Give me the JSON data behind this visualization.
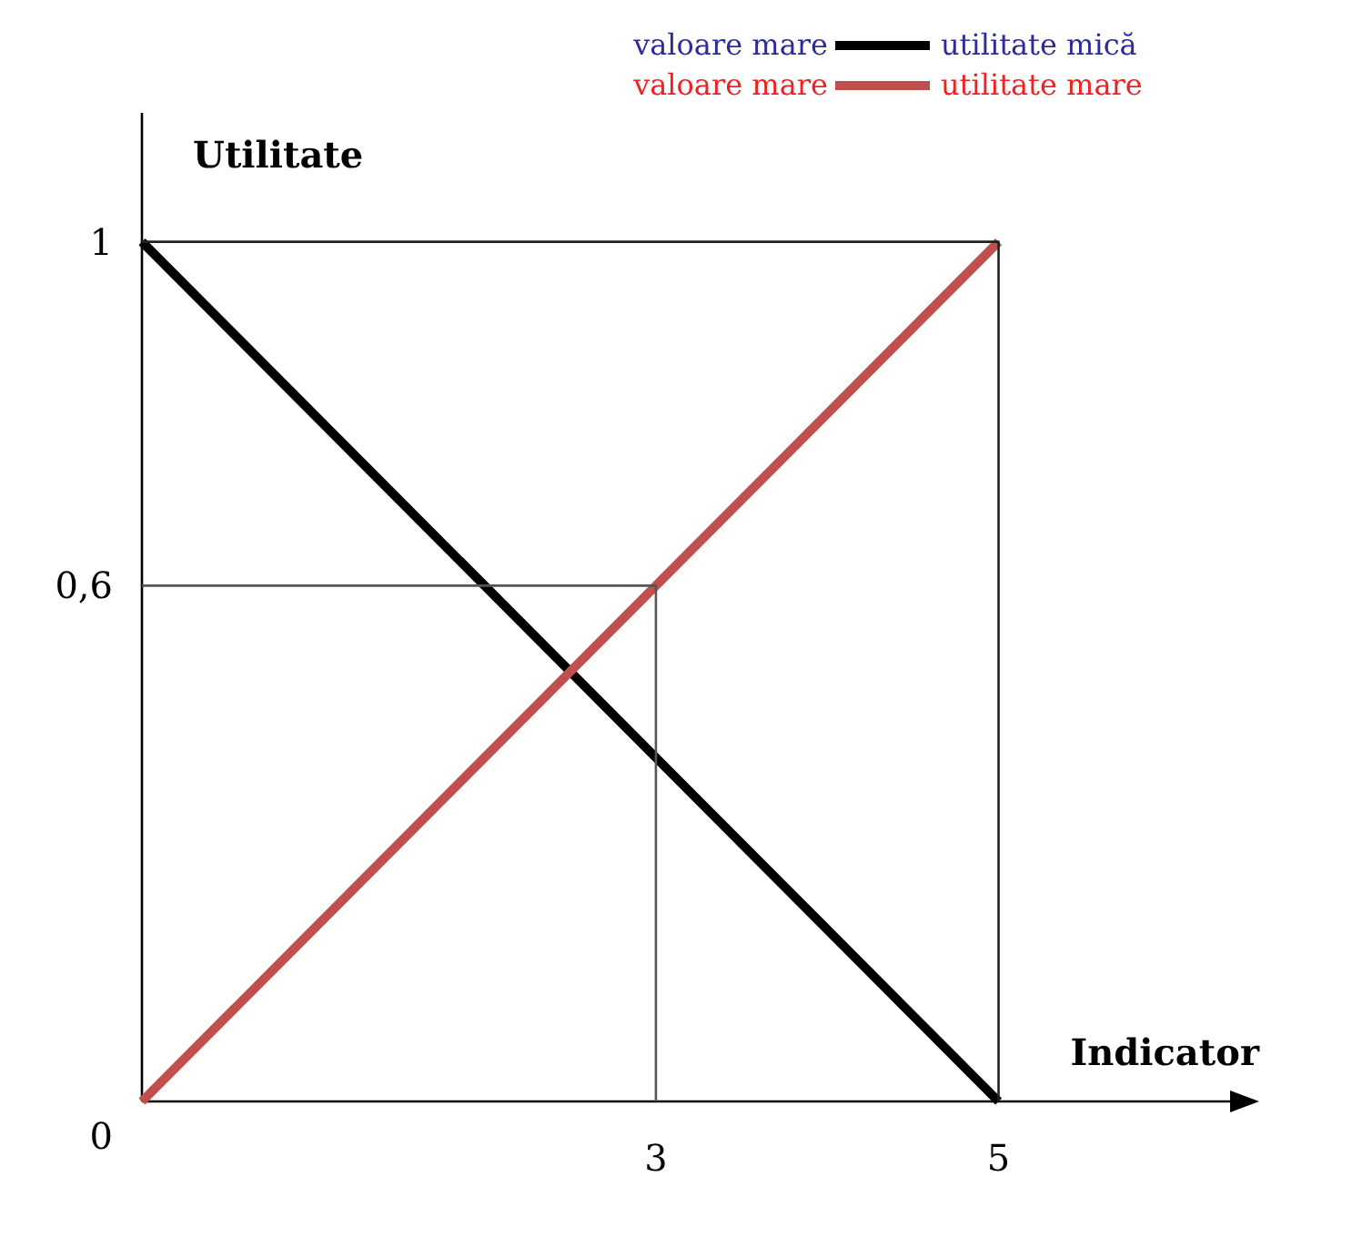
{
  "chart_data": {
    "type": "line",
    "ylabel": "Utilitate",
    "xlabel": "Indicator",
    "xlim": [
      0,
      6.5
    ],
    "ylim": [
      0,
      1.15
    ],
    "xticks": [
      3,
      5
    ],
    "yticks": [
      0,
      {
        "value": 0.6,
        "label": "0,6"
      },
      1
    ],
    "legend": "top right",
    "annotations": [
      "valoare mare",
      "valoare mare"
    ],
    "series": [
      {
        "name": "utilitate mică",
        "color": "#000000",
        "x": [
          0,
          5
        ],
        "values": [
          1,
          0
        ]
      },
      {
        "name": "utilitate mare",
        "color": "#c0504d",
        "x": [
          0,
          5
        ],
        "values": [
          0,
          1
        ]
      },
      {
        "color": "#555555",
        "x": [
          0,
          3,
          3
        ],
        "values": [
          0.6,
          0.6,
          0
        ]
      },
      {
        "color": "#222222",
        "x": [
          0,
          5,
          5
        ],
        "values": [
          1,
          1,
          0
        ]
      }
    ]
  }
}
